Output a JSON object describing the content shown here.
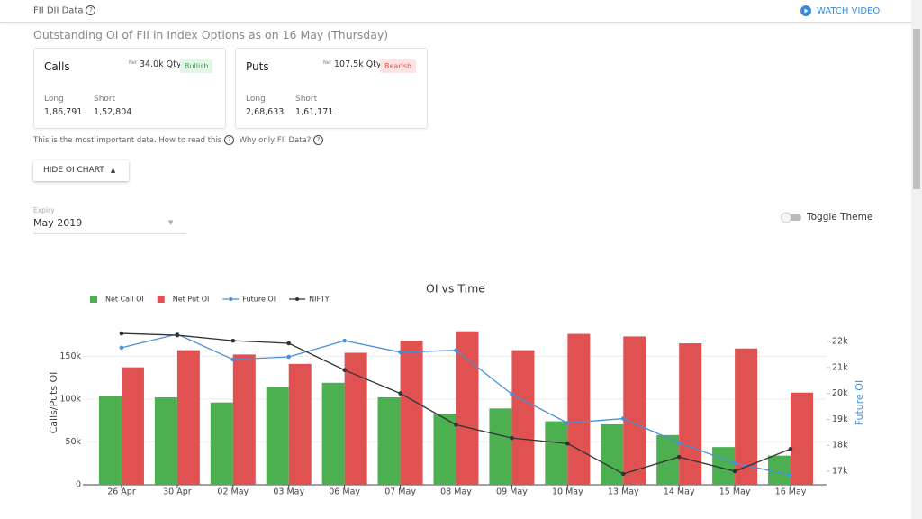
{
  "header": {
    "title": "FII DII Data",
    "action": "WATCH VIDEO"
  },
  "heading": "Outstanding OI of FII in Index Options as on 16 May (Thursday)",
  "cards": [
    {
      "title": "Calls",
      "net_prefix": "Net",
      "net": "34.0k Qty",
      "sentiment": "Bullish",
      "long_label": "Long",
      "long": "1,86,791",
      "short_label": "Short",
      "short": "1,52,804"
    },
    {
      "title": "Puts",
      "net_prefix": "Net",
      "net": "107.5k Qty",
      "sentiment": "Bearish",
      "long_label": "Long",
      "long": "2,68,633",
      "short_label": "Short",
      "short": "1,61,171"
    }
  ],
  "help": {
    "text": "This is the most important data. How to read this",
    "link": "Why only FII Data?"
  },
  "toggle_chart": "HIDE OI CHART",
  "expiry": {
    "label": "Expiry",
    "value": "May 2019"
  },
  "theme_toggle": "Toggle Theme",
  "chart_data": {
    "type": "bar",
    "title": "OI vs Time",
    "y_label": "Calls/Puts OI",
    "y2_label": "Future OI",
    "categories": [
      "26 Apr",
      "30 Apr",
      "02 May",
      "03 May",
      "06 May",
      "07 May",
      "08 May",
      "09 May",
      "10 May",
      "13 May",
      "14 May",
      "15 May",
      "16 May"
    ],
    "series": [
      {
        "name": "Net Call OI",
        "type": "bar",
        "color": "#4caf50",
        "values": [
          103000,
          102000,
          96000,
          114000,
          119000,
          102000,
          83000,
          89000,
          74000,
          70500,
          58000,
          44000,
          34000
        ]
      },
      {
        "name": "Net Put OI",
        "type": "bar",
        "color": "#e05252",
        "values": [
          137000,
          157000,
          152000,
          141000,
          154000,
          168000,
          179000,
          157000,
          176000,
          173000,
          165000,
          159000,
          107500
        ]
      },
      {
        "name": "Future OI",
        "type": "line",
        "axis": "y2",
        "color": "#4a90d9",
        "values": [
          21760,
          22280,
          21310,
          21410,
          22030,
          21590,
          21660,
          19970,
          18860,
          19030,
          18100,
          17310,
          16860
        ]
      },
      {
        "name": "NIFTY",
        "type": "line",
        "axis": "y2",
        "color": "#333333",
        "values": [
          22310,
          22240,
          22030,
          21930,
          20900,
          20000,
          18790,
          18280,
          18070,
          16900,
          17550,
          17000,
          17860
        ]
      }
    ],
    "ylim": [
      0,
      185000
    ],
    "yticks": [
      0,
      {
        "value": 50000,
        "label": "50k"
      },
      {
        "value": 100000,
        "label": "100k"
      },
      {
        "value": 150000,
        "label": "150k"
      }
    ],
    "y2lim": [
      16480,
      22590
    ],
    "y2ticks": [
      {
        "value": 17000,
        "label": "17k"
      },
      {
        "value": 18000,
        "label": "18k"
      },
      {
        "value": 19000,
        "label": "19k"
      },
      {
        "value": 20000,
        "label": "20k"
      },
      {
        "value": 21000,
        "label": "21k"
      },
      {
        "value": 22000,
        "label": "22k"
      }
    ],
    "grid": true
  }
}
